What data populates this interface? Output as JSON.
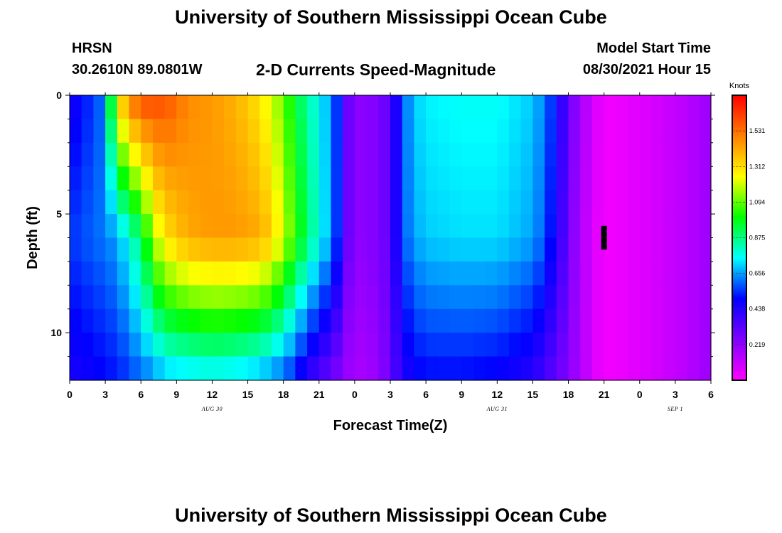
{
  "page": {
    "title_top": "University of Southern Mississippi Ocean Cube",
    "title_bottom": "University of Southern Mississippi Ocean Cube",
    "station_code": "HRSN",
    "station_coords": "30.2610N  89.0801W",
    "product_title": "2-D Currents Speed-Magnitude",
    "model_start_label": "Model Start Time",
    "model_start_value": "08/30/2021 Hour 15"
  },
  "chart_data": {
    "type": "heatmap",
    "title": "2-D Currents Speed-Magnitude",
    "xlabel": "Forecast Time(Z)",
    "ylabel": "Depth (ft)",
    "x_hours": {
      "start": 0,
      "end": 54,
      "step": 1
    },
    "x_tick_hours": [
      0,
      3,
      6,
      9,
      12,
      15,
      18,
      21,
      24,
      27,
      30,
      33,
      36,
      39,
      42,
      45,
      48,
      51,
      54
    ],
    "x_tick_labels": [
      "0",
      "3",
      "6",
      "9",
      "12",
      "15",
      "18",
      "21",
      "0",
      "3",
      "6",
      "9",
      "12",
      "15",
      "18",
      "21",
      "0",
      "3",
      "6"
    ],
    "date_labels": [
      {
        "text": "AUG 30",
        "hour": 12
      },
      {
        "text": "AUG 31",
        "hour": 36
      },
      {
        "text": "SEP 1",
        "hour": 51
      }
    ],
    "ylim": [
      0,
      12
    ],
    "y_ticks": [
      0,
      5,
      10
    ],
    "y_tick_labels": [
      "0",
      "5",
      "10"
    ],
    "y_minor_ticks": [
      1,
      2,
      3,
      4,
      6,
      7,
      8,
      9,
      11
    ],
    "depth_levels_ft": [
      0.5,
      1.5,
      2.5,
      3.5,
      4.5,
      5.5,
      6.5,
      7.5,
      8.5,
      9.5,
      10.5,
      11.5
    ],
    "colorbar": {
      "unit": "Knots",
      "min": 0,
      "max": 1.75,
      "ticks": [
        0.219,
        0.438,
        0.656,
        0.875,
        1.094,
        1.312,
        1.531
      ],
      "tick_labels": [
        "0.219",
        "0.438",
        "0.656",
        "0.875",
        "1.094",
        "1.312",
        "1.531"
      ],
      "colors": [
        "#ff00ff",
        "#8000ff",
        "#0000ff",
        "#00ffff",
        "#00ff00",
        "#ffff00",
        "#ff8000",
        "#ff0000"
      ]
    },
    "current_time_marker": {
      "hour": 45,
      "depth_start": 5.5,
      "depth_end": 6.5,
      "color": "#000000"
    },
    "speed_profile_surface": {
      "hours": [
        0,
        1,
        2,
        3,
        4,
        5,
        6,
        8,
        10,
        12,
        14,
        16,
        18,
        19,
        20,
        21,
        22,
        22.5,
        23,
        24,
        26,
        27,
        27.5,
        28,
        29,
        30,
        33,
        36,
        39,
        40,
        41,
        42,
        43,
        44,
        45,
        46,
        48,
        50,
        52,
        53,
        54
      ],
      "values": [
        0.45,
        0.5,
        0.56,
        0.62,
        1.3,
        1.5,
        1.62,
        1.6,
        1.48,
        1.45,
        1.4,
        1.3,
        1.1,
        0.95,
        0.85,
        0.75,
        0.65,
        0.55,
        0.35,
        0.22,
        0.25,
        0.32,
        0.45,
        0.58,
        0.7,
        0.74,
        0.76,
        0.76,
        0.7,
        0.62,
        0.5,
        0.3,
        0.18,
        0.1,
        0.02,
        0.03,
        0.06,
        0.1,
        0.14,
        0.17,
        0.2
      ]
    },
    "speed_profile_mid": {
      "hours": [
        0,
        2,
        3,
        4,
        5,
        6,
        7,
        8,
        10,
        12,
        14,
        16,
        17,
        18,
        19,
        20,
        21,
        22,
        22.5,
        23,
        24,
        26,
        27,
        27.5,
        28,
        29,
        30,
        33,
        36,
        39,
        40,
        41,
        42,
        43,
        44,
        45,
        46,
        48,
        50,
        52,
        53,
        54
      ],
      "values": [
        0.55,
        0.6,
        0.62,
        0.66,
        0.78,
        0.9,
        1.15,
        1.3,
        1.42,
        1.45,
        1.45,
        1.42,
        1.35,
        1.2,
        1.05,
        0.9,
        0.78,
        0.66,
        0.55,
        0.35,
        0.22,
        0.25,
        0.32,
        0.45,
        0.58,
        0.66,
        0.7,
        0.72,
        0.72,
        0.66,
        0.58,
        0.45,
        0.28,
        0.16,
        0.08,
        0.02,
        0.03,
        0.06,
        0.1,
        0.14,
        0.17,
        0.2
      ]
    },
    "speed_profile_bottom": {
      "hours": [
        0,
        2,
        3,
        4,
        5,
        6,
        7,
        8,
        10,
        12,
        14,
        16,
        17,
        18,
        19,
        20,
        21,
        22,
        23,
        24,
        26,
        27,
        28,
        29,
        30,
        33,
        36,
        39,
        40,
        41,
        42,
        43,
        44,
        45,
        46,
        48,
        50,
        52,
        53,
        54
      ],
      "values": [
        0.45,
        0.48,
        0.5,
        0.52,
        0.55,
        0.6,
        0.62,
        0.68,
        0.7,
        0.72,
        0.7,
        0.66,
        0.62,
        0.58,
        0.5,
        0.4,
        0.34,
        0.28,
        0.22,
        0.16,
        0.2,
        0.3,
        0.42,
        0.48,
        0.5,
        0.5,
        0.48,
        0.42,
        0.36,
        0.3,
        0.24,
        0.16,
        0.08,
        0.02,
        0.03,
        0.06,
        0.1,
        0.14,
        0.17,
        0.2
      ]
    }
  }
}
